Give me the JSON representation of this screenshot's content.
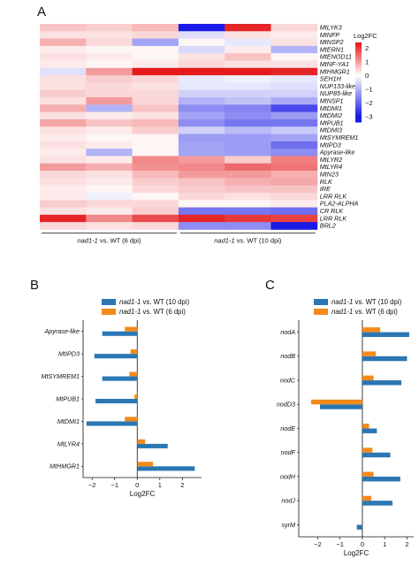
{
  "panel_labels": {
    "a": "A",
    "b": "B",
    "c": "C"
  },
  "colors": {
    "series_10dpi": "#2a77b4",
    "series_6dpi": "#f28a1c",
    "heat_low": "#1a1ae6",
    "heat_mid": "#ffffff",
    "heat_high": "#e41a1c"
  },
  "chart_data": [
    {
      "type": "heatmap",
      "title": "",
      "rows": [
        "MtLYK3",
        "MtNFP",
        "MtNSP2",
        "MtERN1",
        "MtENOD11",
        "MtNF-YA1",
        "MtHMGR1",
        "SEH1H",
        "NUP133-like",
        "NUP85-like",
        "MtNSP1",
        "MtDMI1",
        "MtDMI2",
        "MtPUB1",
        "MtDMI3",
        "MtSYMREM1",
        "MtIPD3",
        "Apyrase-like",
        "MtLYR2",
        "MtLYR4",
        "MtN23",
        "RLK",
        "IRE",
        "LRR RLK",
        "PLA2-ALPHA",
        "CR RLK",
        "LRR RLK",
        "BRL2"
      ],
      "groups": [
        {
          "label": "nad1-1 vs. WT (6 dpi)",
          "italic": "nad1-1",
          "rest": " vs. WT (6 dpi)"
        },
        {
          "label": "nad1-1 vs. WT (10 dpi)",
          "italic": "nad1-1",
          "rest": " vs. WT (10 dpi)"
        }
      ],
      "legend": {
        "title": "Log2FC",
        "ticks": [
          2,
          1,
          0,
          -1,
          -2,
          -3
        ],
        "range": [
          -3.4,
          2.4
        ]
      },
      "values": [
        [
          0.6,
          0.5,
          0.7,
          -3.0,
          2.2,
          0.4
        ],
        [
          0.3,
          0.3,
          0.4,
          -0.4,
          0.3,
          0.2
        ],
        [
          0.8,
          0.4,
          -1.2,
          0.1,
          -0.3,
          0.3
        ],
        [
          0.2,
          0.1,
          0.1,
          -0.5,
          0.2,
          -1.0
        ],
        [
          0.3,
          0.2,
          0.1,
          0.3,
          0.6,
          0.1
        ],
        [
          0.2,
          0.1,
          0.2,
          0.4,
          0.3,
          0.3
        ],
        [
          -0.4,
          1.0,
          2.3,
          2.3,
          2.3,
          2.2
        ],
        [
          0.3,
          0.5,
          0.4,
          -0.3,
          -0.2,
          -0.3
        ],
        [
          0.3,
          0.4,
          0.3,
          -0.3,
          -0.3,
          -0.4
        ],
        [
          0.5,
          0.4,
          0.4,
          -0.6,
          -0.6,
          -0.6
        ],
        [
          0.3,
          1.0,
          0.4,
          -1.0,
          -0.8,
          -1.1
        ],
        [
          0.8,
          -1.0,
          0.6,
          -1.5,
          -1.6,
          -2.4
        ],
        [
          0.3,
          0.2,
          0.3,
          -1.2,
          -1.5,
          -1.3
        ],
        [
          0.9,
          0.6,
          0.7,
          -1.5,
          -1.8,
          -1.8
        ],
        [
          0.3,
          0.2,
          0.5,
          -0.6,
          -0.9,
          -0.7
        ],
        [
          0.2,
          0.1,
          0.1,
          -1.3,
          -1.3,
          -1.2
        ],
        [
          0.3,
          0.2,
          0.1,
          -1.2,
          -1.3,
          -1.9
        ],
        [
          0.2,
          -1.0,
          0.1,
          -1.2,
          -1.3,
          -1.5
        ],
        [
          0.3,
          0.2,
          1.2,
          1.0,
          0.5,
          1.3
        ],
        [
          1.0,
          0.8,
          1.1,
          1.2,
          1.5,
          1.4
        ],
        [
          0.4,
          0.3,
          0.7,
          1.0,
          1.0,
          0.8
        ],
        [
          0.3,
          0.2,
          0.5,
          0.6,
          0.8,
          0.9
        ],
        [
          0.2,
          0.1,
          0.4,
          0.5,
          0.6,
          0.6
        ],
        [
          0.2,
          -0.2,
          0.1,
          0.4,
          0.3,
          0.4
        ],
        [
          0.5,
          0.4,
          0.4,
          0.1,
          0.1,
          0.2
        ],
        [
          0.3,
          0.2,
          0.5,
          -1.8,
          -1.8,
          -1.9
        ],
        [
          2.2,
          1.2,
          1.8,
          2.2,
          2.0,
          1.9
        ],
        [
          0.4,
          0.3,
          0.4,
          -1.5,
          -1.5,
          -3.1
        ]
      ]
    },
    {
      "type": "bar",
      "orientation": "horizontal",
      "categories": [
        "Apyrase-like",
        "MtIPD3",
        "MtSYMREM1",
        "MtPUB1",
        "MtDMI1",
        "MtLYR4",
        "MtHMGR1"
      ],
      "series": [
        {
          "name": "nad1-1 vs. WT (10 dpi)",
          "italic": "nad1-1",
          "rest": " vs. WT (10 dpi)",
          "values": [
            -1.55,
            -1.9,
            -1.55,
            -1.85,
            -2.25,
            1.35,
            2.55
          ]
        },
        {
          "name": "nad1-1 vs. WT (6 dpi)",
          "italic": "nad1-1",
          "rest": " vs. WT (6 dpi)",
          "values": [
            -0.55,
            -0.3,
            -0.35,
            -0.12,
            -0.55,
            0.35,
            0.7
          ]
        }
      ],
      "xlabel": "Log2FC",
      "xlim": [
        -2.4,
        2.85
      ],
      "xticks": [
        -2,
        -1,
        0,
        1,
        2
      ],
      "legend": "top"
    },
    {
      "type": "bar",
      "orientation": "horizontal",
      "categories": [
        "nodA",
        "nodB",
        "nodC",
        "nodD3",
        "nodE",
        "nodF",
        "nodH",
        "nodJ",
        "syrM"
      ],
      "series": [
        {
          "name": "nad1-1 vs. WT (10 dpi)",
          "italic": "nad1-1",
          "rest": " vs. WT (10 dpi)",
          "values": [
            2.1,
            2.0,
            1.75,
            -1.9,
            0.65,
            1.25,
            1.7,
            1.35,
            -0.25
          ]
        },
        {
          "name": "nad1-1 vs. WT (6 dpi)",
          "italic": "nad1-1",
          "rest": " vs. WT (6 dpi)",
          "values": [
            0.8,
            0.6,
            0.5,
            -2.3,
            0.3,
            0.45,
            0.5,
            0.4,
            0.0
          ]
        }
      ],
      "xlabel": "Log2FC",
      "xlim": [
        -2.85,
        2.3
      ],
      "xticks": [
        -2,
        -1,
        0,
        1,
        2
      ],
      "legend": "top"
    }
  ]
}
